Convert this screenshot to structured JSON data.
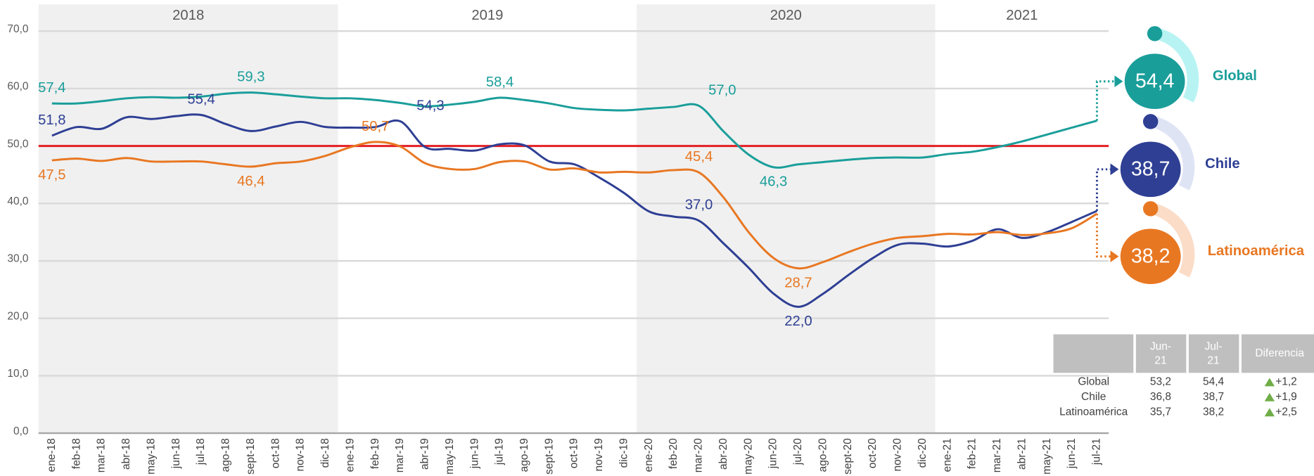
{
  "chart_data": {
    "type": "line",
    "categories": [
      "ene-18",
      "feb-18",
      "mar-18",
      "abr-18",
      "may-18",
      "jun-18",
      "jul-18",
      "ago-18",
      "sept-18",
      "oct-18",
      "nov-18",
      "dic-18",
      "ene-19",
      "feb-19",
      "mar-19",
      "abr-19",
      "may-19",
      "jun-19",
      "jul-19",
      "ago-19",
      "sept-19",
      "oct-19",
      "nov-19",
      "dic-19",
      "ene-20",
      "feb-20",
      "mar-20",
      "abr-20",
      "may-20",
      "jun-20",
      "jul-20",
      "ago-20",
      "sept-20",
      "oct-20",
      "nov-20",
      "dic-20",
      "ene-21",
      "feb-21",
      "mar-21",
      "abr-21",
      "may-21",
      "jun-21",
      "jul-21"
    ],
    "years": [
      "2018",
      "2019",
      "2020",
      "2021"
    ],
    "ylim": [
      0,
      70
    ],
    "yticks": [
      {
        "value": 0,
        "label": "0,0"
      },
      {
        "value": 10,
        "label": "10,0"
      },
      {
        "value": 20,
        "label": "20,0"
      },
      {
        "value": 30,
        "label": "30,0"
      },
      {
        "value": 40,
        "label": "40,0"
      },
      {
        "value": 50,
        "label": "50,0"
      },
      {
        "value": 60,
        "label": "60,0"
      },
      {
        "value": 70,
        "label": "70,0"
      }
    ],
    "grid": true,
    "reference_line": {
      "value": 50,
      "color": "#e31e24"
    },
    "series": [
      {
        "name": "Global",
        "color": "#1a9e9a",
        "values": [
          57.4,
          57.4,
          57.8,
          58.3,
          58.5,
          58.4,
          58.6,
          59.1,
          59.3,
          59.0,
          58.6,
          58.3,
          58.3,
          58.0,
          57.5,
          56.9,
          57.2,
          57.7,
          58.4,
          58.0,
          57.4,
          56.6,
          56.3,
          56.2,
          56.5,
          56.8,
          57.0,
          52.5,
          48.5,
          46.3,
          46.8,
          47.2,
          47.6,
          47.9,
          48.0,
          48.0,
          48.6,
          49.0,
          49.8,
          50.8,
          52.0,
          53.2,
          54.4
        ],
        "value_labels": [
          "57,4",
          null,
          null,
          null,
          null,
          null,
          null,
          null,
          "59,3",
          null,
          null,
          null,
          null,
          null,
          null,
          null,
          null,
          null,
          "58,4",
          null,
          null,
          null,
          null,
          null,
          null,
          null,
          "57,0",
          null,
          null,
          "46,3",
          null,
          null,
          null,
          null,
          null,
          null,
          null,
          null,
          null,
          null,
          null,
          null,
          "54,4"
        ]
      },
      {
        "name": "Chile",
        "color": "#2e3f94",
        "values": [
          51.8,
          53.3,
          53.0,
          55.0,
          54.7,
          55.2,
          55.4,
          53.8,
          52.6,
          53.4,
          54.2,
          53.3,
          53.2,
          53.3,
          54.3,
          49.8,
          49.5,
          49.2,
          50.3,
          50.1,
          47.3,
          46.8,
          44.5,
          41.8,
          38.6,
          37.7,
          37.0,
          33.0,
          28.8,
          24.3,
          22.0,
          24.3,
          27.5,
          30.5,
          32.8,
          33.0,
          32.5,
          33.5,
          35.5,
          34.0,
          35.0,
          36.8,
          38.7
        ],
        "value_labels": [
          "51,8",
          null,
          null,
          null,
          null,
          null,
          "55,4",
          null,
          null,
          null,
          null,
          null,
          null,
          null,
          "54,3",
          null,
          null,
          null,
          null,
          null,
          null,
          null,
          null,
          null,
          null,
          null,
          "37,0",
          null,
          null,
          null,
          "22,0",
          null,
          null,
          null,
          null,
          null,
          null,
          null,
          null,
          null,
          null,
          null,
          "38,7"
        ]
      },
      {
        "name": "Latinoamérica",
        "color": "#e87722",
        "values": [
          47.5,
          47.8,
          47.4,
          47.9,
          47.3,
          47.3,
          47.3,
          46.8,
          46.4,
          47.0,
          47.3,
          48.3,
          49.8,
          50.7,
          49.9,
          47.0,
          46.0,
          46.0,
          47.2,
          47.3,
          45.9,
          46.1,
          45.4,
          45.5,
          45.4,
          45.8,
          45.4,
          41.0,
          35.0,
          30.5,
          28.7,
          29.8,
          31.5,
          33.0,
          34.0,
          34.3,
          34.7,
          34.6,
          35.0,
          34.5,
          34.8,
          35.7,
          38.2
        ],
        "value_labels": [
          "47,5",
          null,
          null,
          null,
          null,
          null,
          null,
          null,
          "46,4",
          null,
          null,
          null,
          null,
          "50,7",
          null,
          null,
          null,
          null,
          null,
          null,
          null,
          null,
          null,
          null,
          null,
          null,
          "45,4",
          null,
          null,
          null,
          "28,7",
          null,
          null,
          null,
          null,
          null,
          null,
          null,
          null,
          null,
          null,
          null,
          "38,2"
        ]
      }
    ]
  },
  "table": {
    "columns": [
      "Jun-21",
      "Jul-21",
      "Diferencia"
    ],
    "rows": [
      [
        "Global",
        "53,2",
        "54,4",
        "+1,2"
      ],
      [
        "Chile",
        "36,8",
        "38,7",
        "+1,9"
      ],
      [
        "Latinoamérica",
        "35,7",
        "38,2",
        "+2,5"
      ]
    ]
  }
}
